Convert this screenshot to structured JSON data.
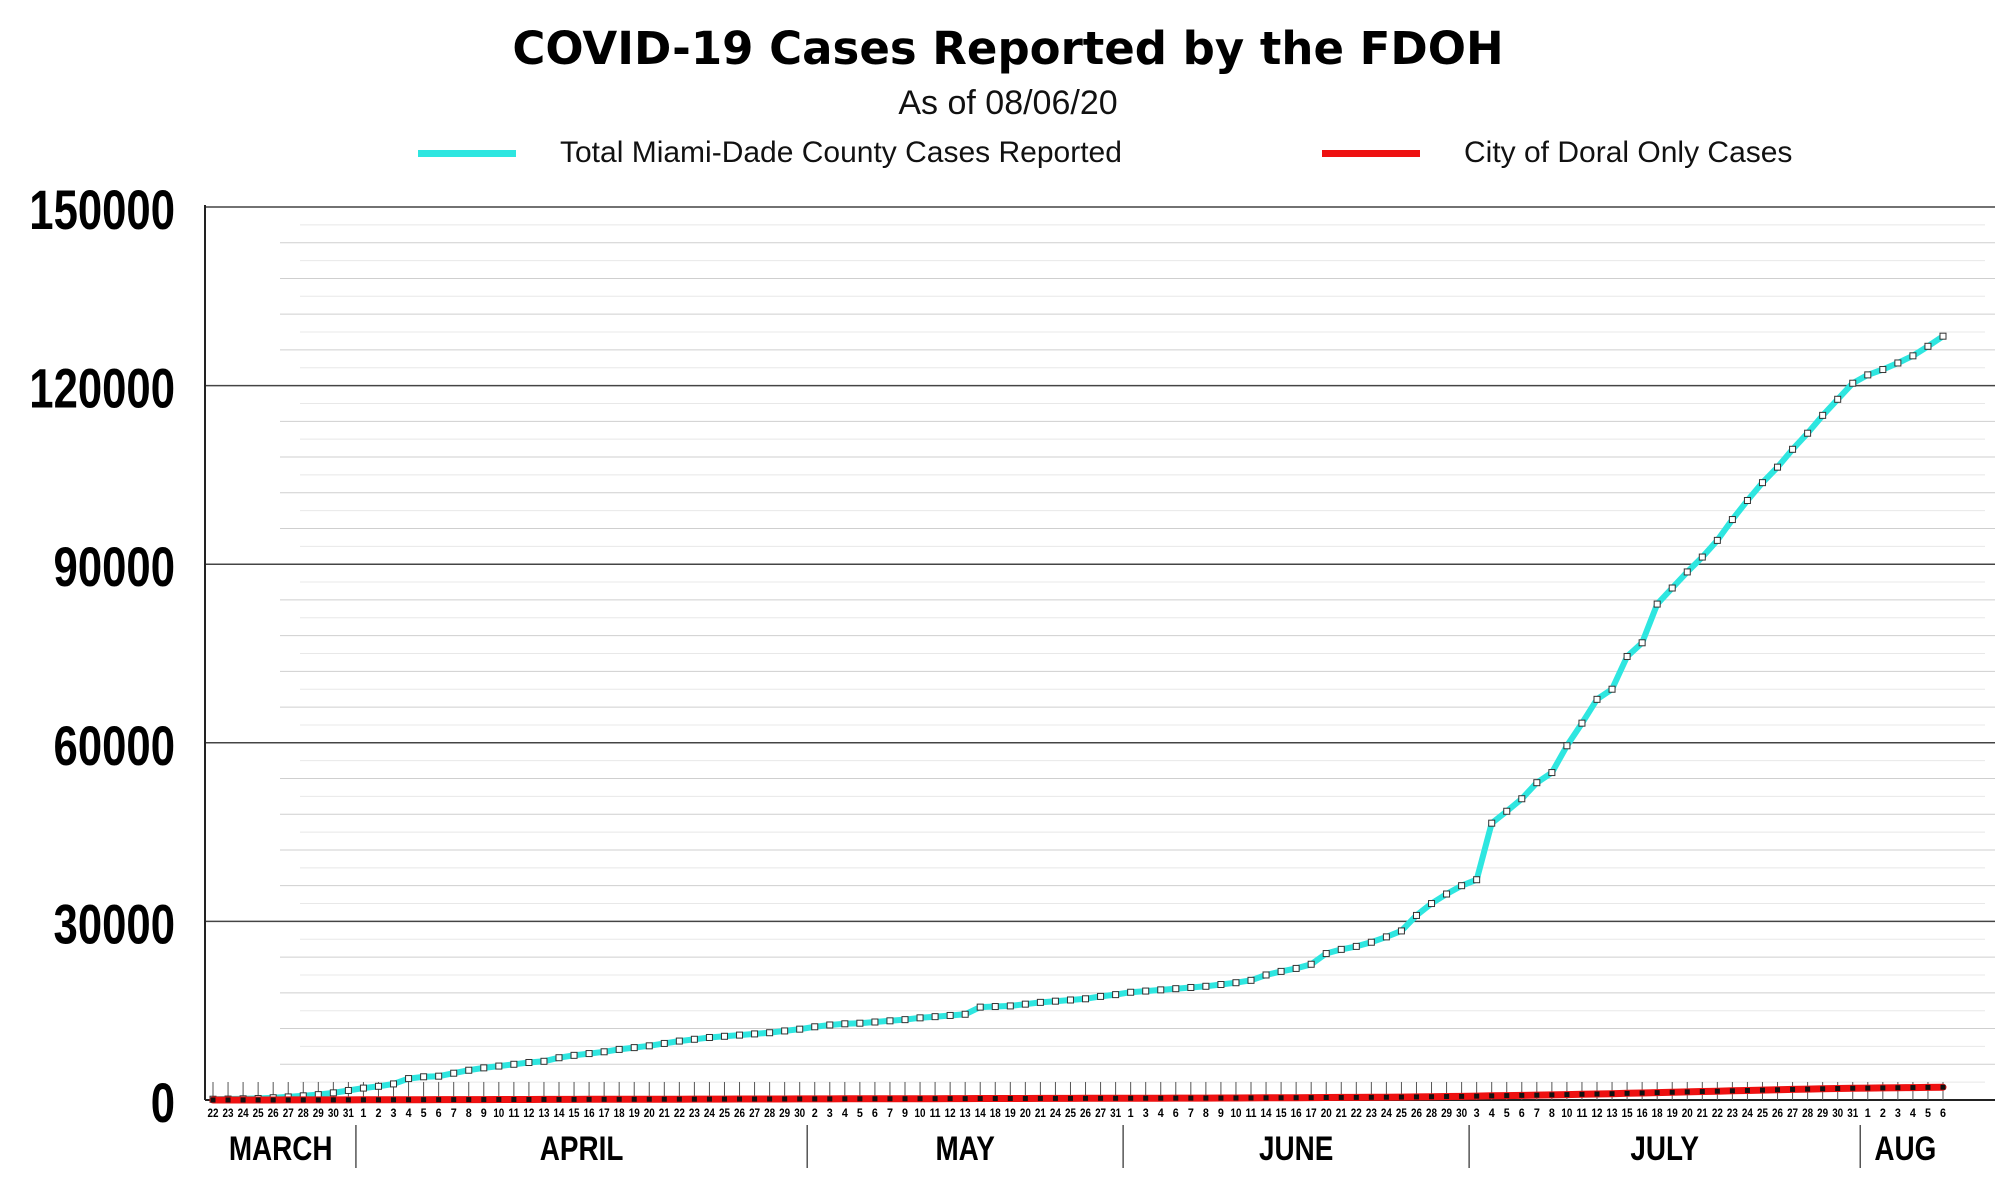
{
  "colors": {
    "county": "#2ee6e0",
    "doral": "#ee1111",
    "grid_major": "#444444",
    "grid_minor": "#cfcfcf",
    "text": "#000000"
  },
  "chart_data": {
    "type": "line",
    "title": "COVID-19 Cases Reported by the FDOH",
    "subtitle": "As of 08/06/20",
    "xlabel": "",
    "ylabel": "",
    "ylim": [
      0,
      150000
    ],
    "yticks": [
      0,
      30000,
      60000,
      90000,
      120000,
      150000
    ],
    "grid": true,
    "legend_position": "top",
    "day_labels": [
      "22",
      "23",
      "24",
      "25",
      "26",
      "27",
      "28",
      "29",
      "30",
      "31",
      "1",
      "2",
      "3",
      "4",
      "5",
      "6",
      "7",
      "8",
      "9",
      "10",
      "11",
      "12",
      "13",
      "14",
      "15",
      "16",
      "17",
      "18",
      "19",
      "20",
      "21",
      "22",
      "23",
      "24",
      "25",
      "26",
      "27",
      "28",
      "29",
      "30",
      "2",
      "3",
      "4",
      "5",
      "6",
      "7",
      "9",
      "10",
      "11",
      "12",
      "13",
      "14",
      "18",
      "19",
      "20",
      "21",
      "24",
      "25",
      "26",
      "27",
      "31",
      "1",
      "3",
      "4",
      "6",
      "7",
      "8",
      "9",
      "10",
      "11",
      "14",
      "15",
      "16",
      "17",
      "20",
      "21",
      "22",
      "23",
      "24",
      "25",
      "26",
      "28",
      "29",
      "30",
      "3",
      "4",
      "5",
      "6",
      "7",
      "8",
      "10",
      "11",
      "12",
      "13",
      "15",
      "16",
      "18",
      "19",
      "20",
      "21",
      "22",
      "23",
      "24",
      "25",
      "26",
      "27",
      "28",
      "29",
      "30",
      "31",
      "1",
      "2",
      "3",
      "4",
      "5",
      "6"
    ],
    "months": [
      {
        "label": "MARCH",
        "start": 0,
        "end": 9
      },
      {
        "label": "APRIL",
        "start": 10,
        "end": 39
      },
      {
        "label": "MAY",
        "start": 40,
        "end": 60
      },
      {
        "label": "JUNE",
        "start": 61,
        "end": 83
      },
      {
        "label": "JULY",
        "start": 84,
        "end": 109
      },
      {
        "label": "AUG",
        "start": 110,
        "end": 115
      }
    ],
    "series": [
      {
        "name": "Total Miami-Dade County Cases Reported",
        "color": "#2ee6e0",
        "values": [
          130,
          160,
          200,
          250,
          380,
          520,
          700,
          900,
          1200,
          1600,
          2000,
          2300,
          2700,
          3600,
          3900,
          4000,
          4500,
          5000,
          5400,
          5700,
          6000,
          6300,
          6500,
          7100,
          7500,
          7800,
          8100,
          8500,
          8800,
          9100,
          9500,
          9900,
          10200,
          10500,
          10700,
          10900,
          11100,
          11300,
          11600,
          11900,
          12300,
          12600,
          12800,
          12900,
          13100,
          13300,
          13500,
          13800,
          14000,
          14200,
          14400,
          15600,
          15700,
          15800,
          16100,
          16400,
          16600,
          16800,
          17000,
          17400,
          17700,
          18100,
          18300,
          18500,
          18700,
          18900,
          19100,
          19400,
          19700,
          20100,
          21000,
          21600,
          22100,
          22800,
          24600,
          25300,
          25800,
          26500,
          27400,
          28400,
          31000,
          33000,
          34600,
          36000,
          37000,
          46500,
          48500,
          50600,
          53300,
          55000,
          59500,
          63300,
          67300,
          69000,
          74500,
          76800,
          83300,
          86000,
          88700,
          91200,
          94000,
          97500,
          100700,
          103700,
          106300,
          109300,
          112000,
          115000,
          117700,
          120400,
          121800,
          122700,
          123800,
          125000,
          126600,
          128300
        ]
      },
      {
        "name": "City of Doral Only Cases",
        "color": "#ee1111",
        "values": [
          2,
          3,
          4,
          5,
          7,
          10,
          12,
          15,
          20,
          25,
          30,
          35,
          40,
          50,
          55,
          60,
          65,
          70,
          75,
          80,
          85,
          90,
          95,
          100,
          105,
          110,
          115,
          120,
          125,
          130,
          135,
          140,
          145,
          150,
          155,
          160,
          165,
          170,
          175,
          180,
          185,
          190,
          195,
          200,
          205,
          210,
          215,
          220,
          225,
          230,
          235,
          245,
          250,
          255,
          260,
          265,
          270,
          275,
          280,
          285,
          290,
          300,
          305,
          310,
          315,
          320,
          325,
          330,
          340,
          350,
          365,
          375,
          385,
          400,
          420,
          430,
          440,
          455,
          470,
          490,
          520,
          550,
          580,
          610,
          650,
          700,
          740,
          780,
          820,
          860,
          910,
          960,
          1010,
          1060,
          1120,
          1180,
          1240,
          1300,
          1360,
          1420,
          1480,
          1540,
          1600,
          1660,
          1720,
          1780,
          1830,
          1880,
          1930,
          1980,
          2000,
          2030,
          2060,
          2090,
          2120,
          2150
        ]
      }
    ]
  }
}
